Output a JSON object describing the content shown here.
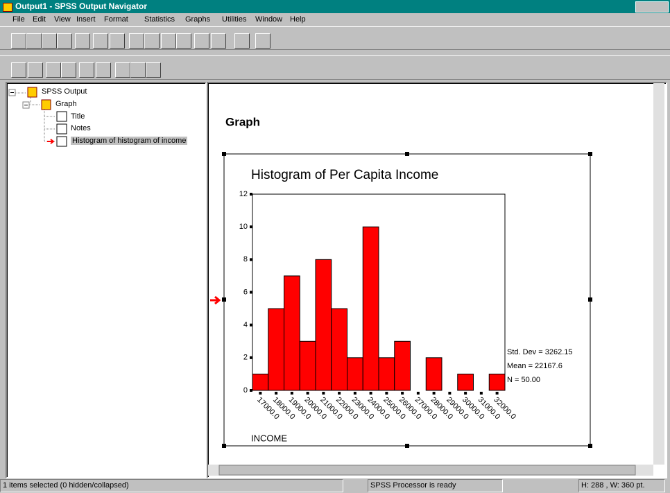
{
  "window": {
    "title": "Output1 - SPSS Output Navigator"
  },
  "menu": [
    "File",
    "Edit",
    "View",
    "Insert",
    "Format",
    "Statistics",
    "Graphs",
    "Utilities",
    "Window",
    "Help"
  ],
  "tree": [
    "SPSS Output",
    "Graph",
    "Title",
    "Notes",
    "Histogram of histogram of income"
  ],
  "heading": "Graph",
  "chart_data": {
    "type": "histogram",
    "title": "Histogram of Per Capita Income",
    "x_label": "INCOME",
    "bins": [
      16500,
      17500,
      18500,
      19500,
      20500,
      21500,
      22500,
      23500,
      24500,
      25500,
      26500,
      27500,
      28500,
      29500,
      30500,
      31500,
      32500
    ],
    "values": [
      1,
      5,
      7,
      3,
      8,
      5,
      2,
      10,
      2,
      3,
      0,
      2,
      0,
      1,
      0,
      1
    ],
    "color": "#ff0000",
    "xlim": [
      16500,
      32500
    ],
    "xticks": [
      {
        "value": 17000,
        "label": "17000.0"
      },
      {
        "value": 18000,
        "label": "18000.0"
      },
      {
        "value": 19000,
        "label": "19000.0"
      },
      {
        "value": 20000,
        "label": "20000.0"
      },
      {
        "value": 21000,
        "label": "21000.0"
      },
      {
        "value": 22000,
        "label": "22000.0"
      },
      {
        "value": 23000,
        "label": "23000.0"
      },
      {
        "value": 24000,
        "label": "24000.0"
      },
      {
        "value": 25000,
        "label": "25000.0"
      },
      {
        "value": 26000,
        "label": "26000.0"
      },
      {
        "value": 27000,
        "label": "27000.0"
      },
      {
        "value": 28000,
        "label": "28000.0"
      },
      {
        "value": 29000,
        "label": "29000.0"
      },
      {
        "value": 30000,
        "label": "30000.0"
      },
      {
        "value": 31000,
        "label": "31000.0"
      },
      {
        "value": 32000,
        "label": "32000.0"
      }
    ],
    "ylim": [
      0,
      12
    ],
    "yticks": [
      0,
      2,
      4,
      6,
      8,
      10,
      12
    ],
    "annotations": [
      "Std. Dev = 3262.15",
      "Mean = 22167.6",
      "N = 50.00"
    ]
  },
  "status": [
    "1 items selected (0 hidden/collapsed)",
    "SPSS Processor is ready",
    "H: 288 , W: 360 pt."
  ]
}
